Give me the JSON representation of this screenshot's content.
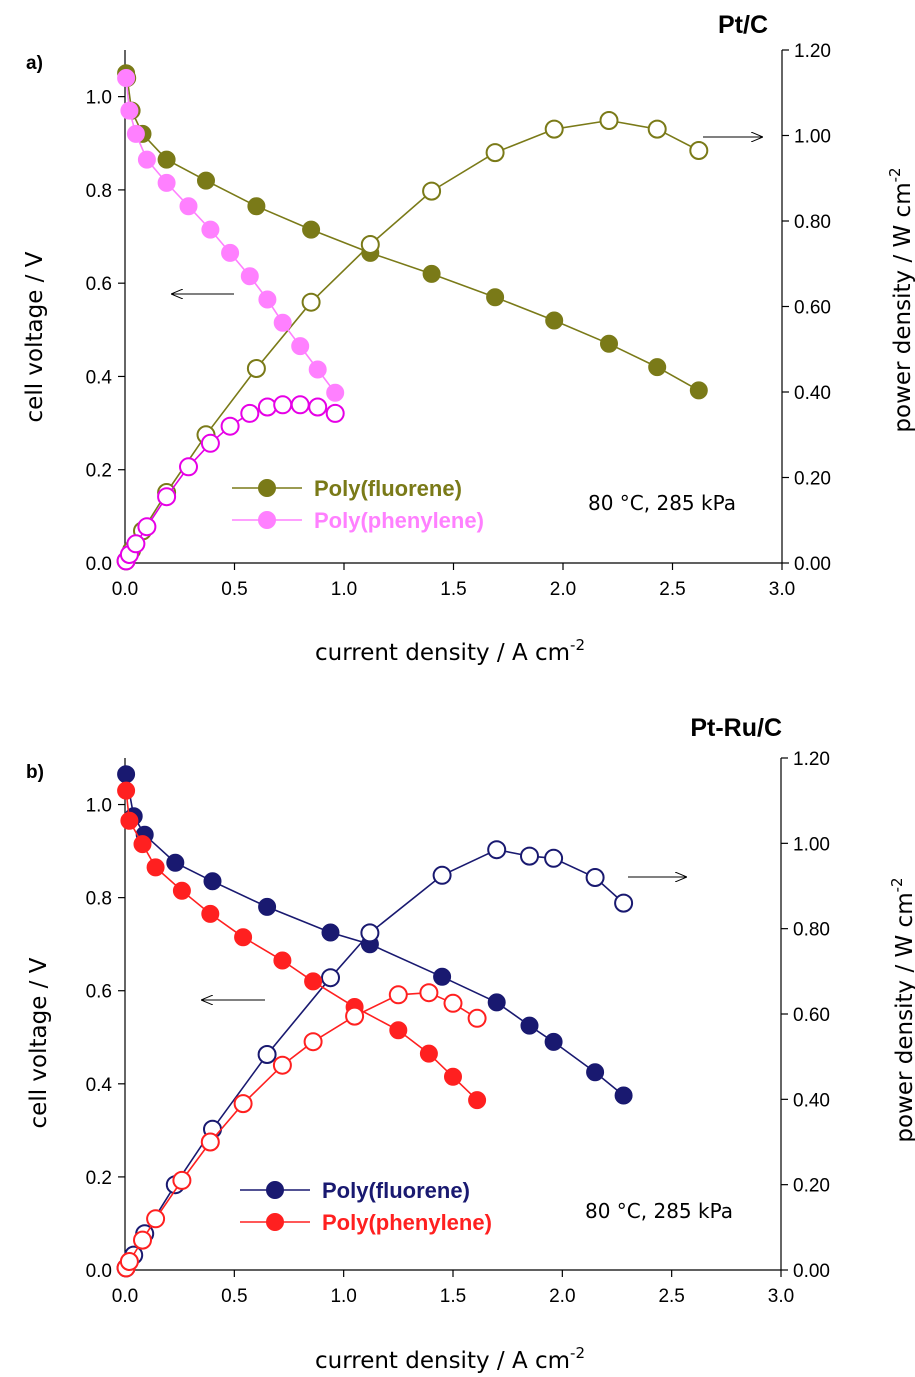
{
  "chart_data": [
    {
      "type": "line",
      "panel_label": "a)",
      "title": "Pt/C",
      "xlabel": "current density / A cm",
      "xlabel_sup": "-2",
      "ylabel": "cell voltage / V",
      "y2label": "power density / W cm",
      "y2label_sup": "-2",
      "xlim": [
        0,
        3.0
      ],
      "ylim": [
        0,
        1.1
      ],
      "y2lim": [
        0,
        1.2
      ],
      "xticks": [
        "0.0",
        "0.5",
        "1.0",
        "1.5",
        "2.0",
        "2.5",
        "3.0"
      ],
      "yticks": [
        "0.0",
        "0.2",
        "0.4",
        "0.6",
        "0.8",
        "1.0"
      ],
      "y2ticks": [
        "0.00",
        "0.20",
        "0.40",
        "0.60",
        "0.80",
        "1.00",
        "1.20"
      ],
      "annotation": "80 °C, 285 kPa",
      "series": [
        {
          "name": "Poly(fluorene)",
          "color": "#7a7a18",
          "kind": "voltage",
          "axis": "left",
          "x": [
            0.005,
            0.01,
            0.03,
            0.08,
            0.19,
            0.37,
            0.6,
            0.85,
            1.12,
            1.4,
            1.69,
            1.96,
            2.21,
            2.43,
            2.62
          ],
          "y": [
            1.05,
            1.04,
            0.97,
            0.92,
            0.865,
            0.82,
            0.765,
            0.715,
            0.665,
            0.62,
            0.57,
            0.52,
            0.47,
            0.42,
            0.37
          ]
        },
        {
          "name": "Poly(fluorene)",
          "color": "#7a7a18",
          "kind": "power",
          "axis": "right",
          "x": [
            0.005,
            0.03,
            0.08,
            0.19,
            0.37,
            0.6,
            0.85,
            1.12,
            1.4,
            1.69,
            1.96,
            2.21,
            2.43,
            2.62
          ],
          "y": [
            0.005,
            0.03,
            0.075,
            0.165,
            0.3,
            0.455,
            0.61,
            0.745,
            0.87,
            0.96,
            1.015,
            1.035,
            1.015,
            0.965
          ]
        },
        {
          "name": "Poly(phenylene)",
          "color": "#ff80ff",
          "kind": "voltage",
          "axis": "left",
          "x": [
            0.005,
            0.02,
            0.05,
            0.1,
            0.19,
            0.29,
            0.39,
            0.48,
            0.57,
            0.65,
            0.72,
            0.8,
            0.88,
            0.96
          ],
          "y": [
            1.04,
            0.97,
            0.92,
            0.865,
            0.815,
            0.765,
            0.715,
            0.665,
            0.615,
            0.565,
            0.515,
            0.465,
            0.415,
            0.365
          ]
        },
        {
          "name": "Poly(phenylene)",
          "color": "#e600e6",
          "kind": "power",
          "axis": "right",
          "x": [
            0.005,
            0.02,
            0.05,
            0.1,
            0.19,
            0.29,
            0.39,
            0.48,
            0.57,
            0.65,
            0.72,
            0.8,
            0.88,
            0.96
          ],
          "y": [
            0.005,
            0.02,
            0.045,
            0.085,
            0.155,
            0.225,
            0.28,
            0.32,
            0.35,
            0.365,
            0.37,
            0.37,
            0.365,
            0.35
          ]
        }
      ]
    },
    {
      "type": "line",
      "panel_label": "b)",
      "title": "Pt-Ru/C",
      "xlabel": "current density / A cm",
      "xlabel_sup": "-2",
      "ylabel": "cell voltage / V",
      "y2label": "power density / W cm",
      "y2label_sup": "-2",
      "xlim": [
        0,
        3.0
      ],
      "ylim": [
        0,
        1.1
      ],
      "y2lim": [
        0,
        1.2
      ],
      "xticks": [
        "0.0",
        "0.5",
        "1.0",
        "1.5",
        "2.0",
        "2.5",
        "3.0"
      ],
      "yticks": [
        "0.0",
        "0.2",
        "0.4",
        "0.6",
        "0.8",
        "1.0"
      ],
      "y2ticks": [
        "0.00",
        "0.20",
        "0.40",
        "0.60",
        "0.80",
        "1.00",
        "1.20"
      ],
      "annotation": "80 °C, 285 kPa",
      "series": [
        {
          "name": "Poly(fluorene)",
          "color": "#191970",
          "kind": "voltage",
          "axis": "left",
          "x": [
            0.005,
            0.04,
            0.09,
            0.23,
            0.4,
            0.65,
            0.94,
            1.12,
            1.45,
            1.7,
            1.85,
            1.96,
            2.15,
            2.28
          ],
          "y": [
            1.065,
            0.975,
            0.935,
            0.875,
            0.835,
            0.78,
            0.725,
            0.7,
            0.63,
            0.575,
            0.525,
            0.49,
            0.425,
            0.375
          ]
        },
        {
          "name": "Poly(fluorene)",
          "color": "#191970",
          "kind": "power",
          "axis": "right",
          "x": [
            0.005,
            0.04,
            0.09,
            0.23,
            0.4,
            0.65,
            0.94,
            1.12,
            1.45,
            1.7,
            1.85,
            1.96,
            2.15,
            2.28
          ],
          "y": [
            0.005,
            0.035,
            0.085,
            0.2,
            0.33,
            0.505,
            0.685,
            0.79,
            0.925,
            0.985,
            0.97,
            0.965,
            0.92,
            0.86
          ]
        },
        {
          "name": "Poly(phenylene)",
          "color": "#ff2020",
          "kind": "voltage",
          "axis": "left",
          "x": [
            0.005,
            0.02,
            0.08,
            0.14,
            0.26,
            0.39,
            0.54,
            0.72,
            0.86,
            1.05,
            1.25,
            1.39,
            1.5,
            1.61
          ],
          "y": [
            1.03,
            0.965,
            0.915,
            0.865,
            0.815,
            0.765,
            0.715,
            0.665,
            0.62,
            0.565,
            0.515,
            0.465,
            0.415,
            0.365
          ]
        },
        {
          "name": "Poly(phenylene)",
          "color": "#ff2020",
          "kind": "power",
          "axis": "right",
          "x": [
            0.005,
            0.02,
            0.08,
            0.14,
            0.26,
            0.39,
            0.54,
            0.72,
            0.86,
            1.05,
            1.25,
            1.39,
            1.5,
            1.61
          ],
          "y": [
            0.005,
            0.02,
            0.07,
            0.12,
            0.21,
            0.3,
            0.39,
            0.48,
            0.535,
            0.595,
            0.645,
            0.65,
            0.625,
            0.59
          ]
        }
      ]
    }
  ]
}
